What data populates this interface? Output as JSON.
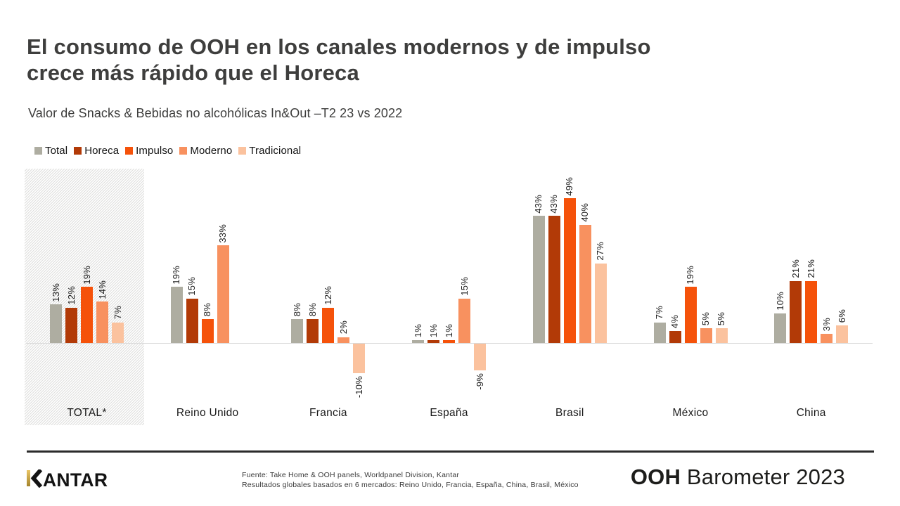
{
  "header": {
    "title_line1": "El consumo de OOH en los canales modernos y de impulso",
    "title_line2": "crece más rápido que el Horeca",
    "subtitle": "Valor de Snacks & Bebidas no alcohólicas In&Out –T2 23 vs 2022"
  },
  "chart_data": {
    "type": "bar",
    "categories": [
      "TOTAL*",
      "Reino Unido",
      "Francia",
      "España",
      "Brasil",
      "México",
      "China"
    ],
    "series": [
      {
        "name": "Total",
        "color": "#aeada1",
        "values": [
          13,
          19,
          8,
          1,
          43,
          7,
          10
        ]
      },
      {
        "name": "Horeca",
        "color": "#b23a07",
        "values": [
          12,
          15,
          8,
          1,
          43,
          4,
          21
        ]
      },
      {
        "name": "Impulso",
        "color": "#f5520a",
        "values": [
          19,
          8,
          12,
          1,
          49,
          19,
          21
        ]
      },
      {
        "name": "Moderno",
        "color": "#f8915f",
        "values": [
          14,
          33,
          2,
          15,
          40,
          5,
          3
        ]
      },
      {
        "name": "Tradicional",
        "color": "#fbc29e",
        "values": [
          7,
          null,
          -10,
          -9,
          27,
          5,
          6
        ]
      }
    ],
    "value_suffix": "%",
    "title": "El consumo de OOH en los canales modernos y de impulso crece más rápido que el Horeca",
    "subtitle": "Valor de Snacks & Bebidas no alcohólicas In&Out –T2 23 vs 2022",
    "xlabel": "",
    "ylabel": "",
    "ylim": [
      -12,
      52
    ],
    "grid": false,
    "legend_position": "top-left",
    "highlighted_category": "TOTAL*",
    "bar_value_labels_rotated": true
  },
  "footer": {
    "logo_text": "KANTAR",
    "logo_text_rest": "ANTAR",
    "source_line1": "Fuente: Take Home & OOH panels, Worldpanel Division, Kantar",
    "source_line2": "Resultados globales basados en 6 mercados: Reino Unido, Francia, España, China, Brasil, México",
    "brand_bold": "OOH",
    "brand_rest": " Barometer 2023"
  },
  "colors": {
    "title_text": "#3e3e3d",
    "axis_line": "#d9d9d9",
    "footer_rule": "#2b2b2b",
    "logo_gold_top": "#eac565",
    "logo_gold_bottom": "#a4842c",
    "logo_black": "#131313"
  }
}
